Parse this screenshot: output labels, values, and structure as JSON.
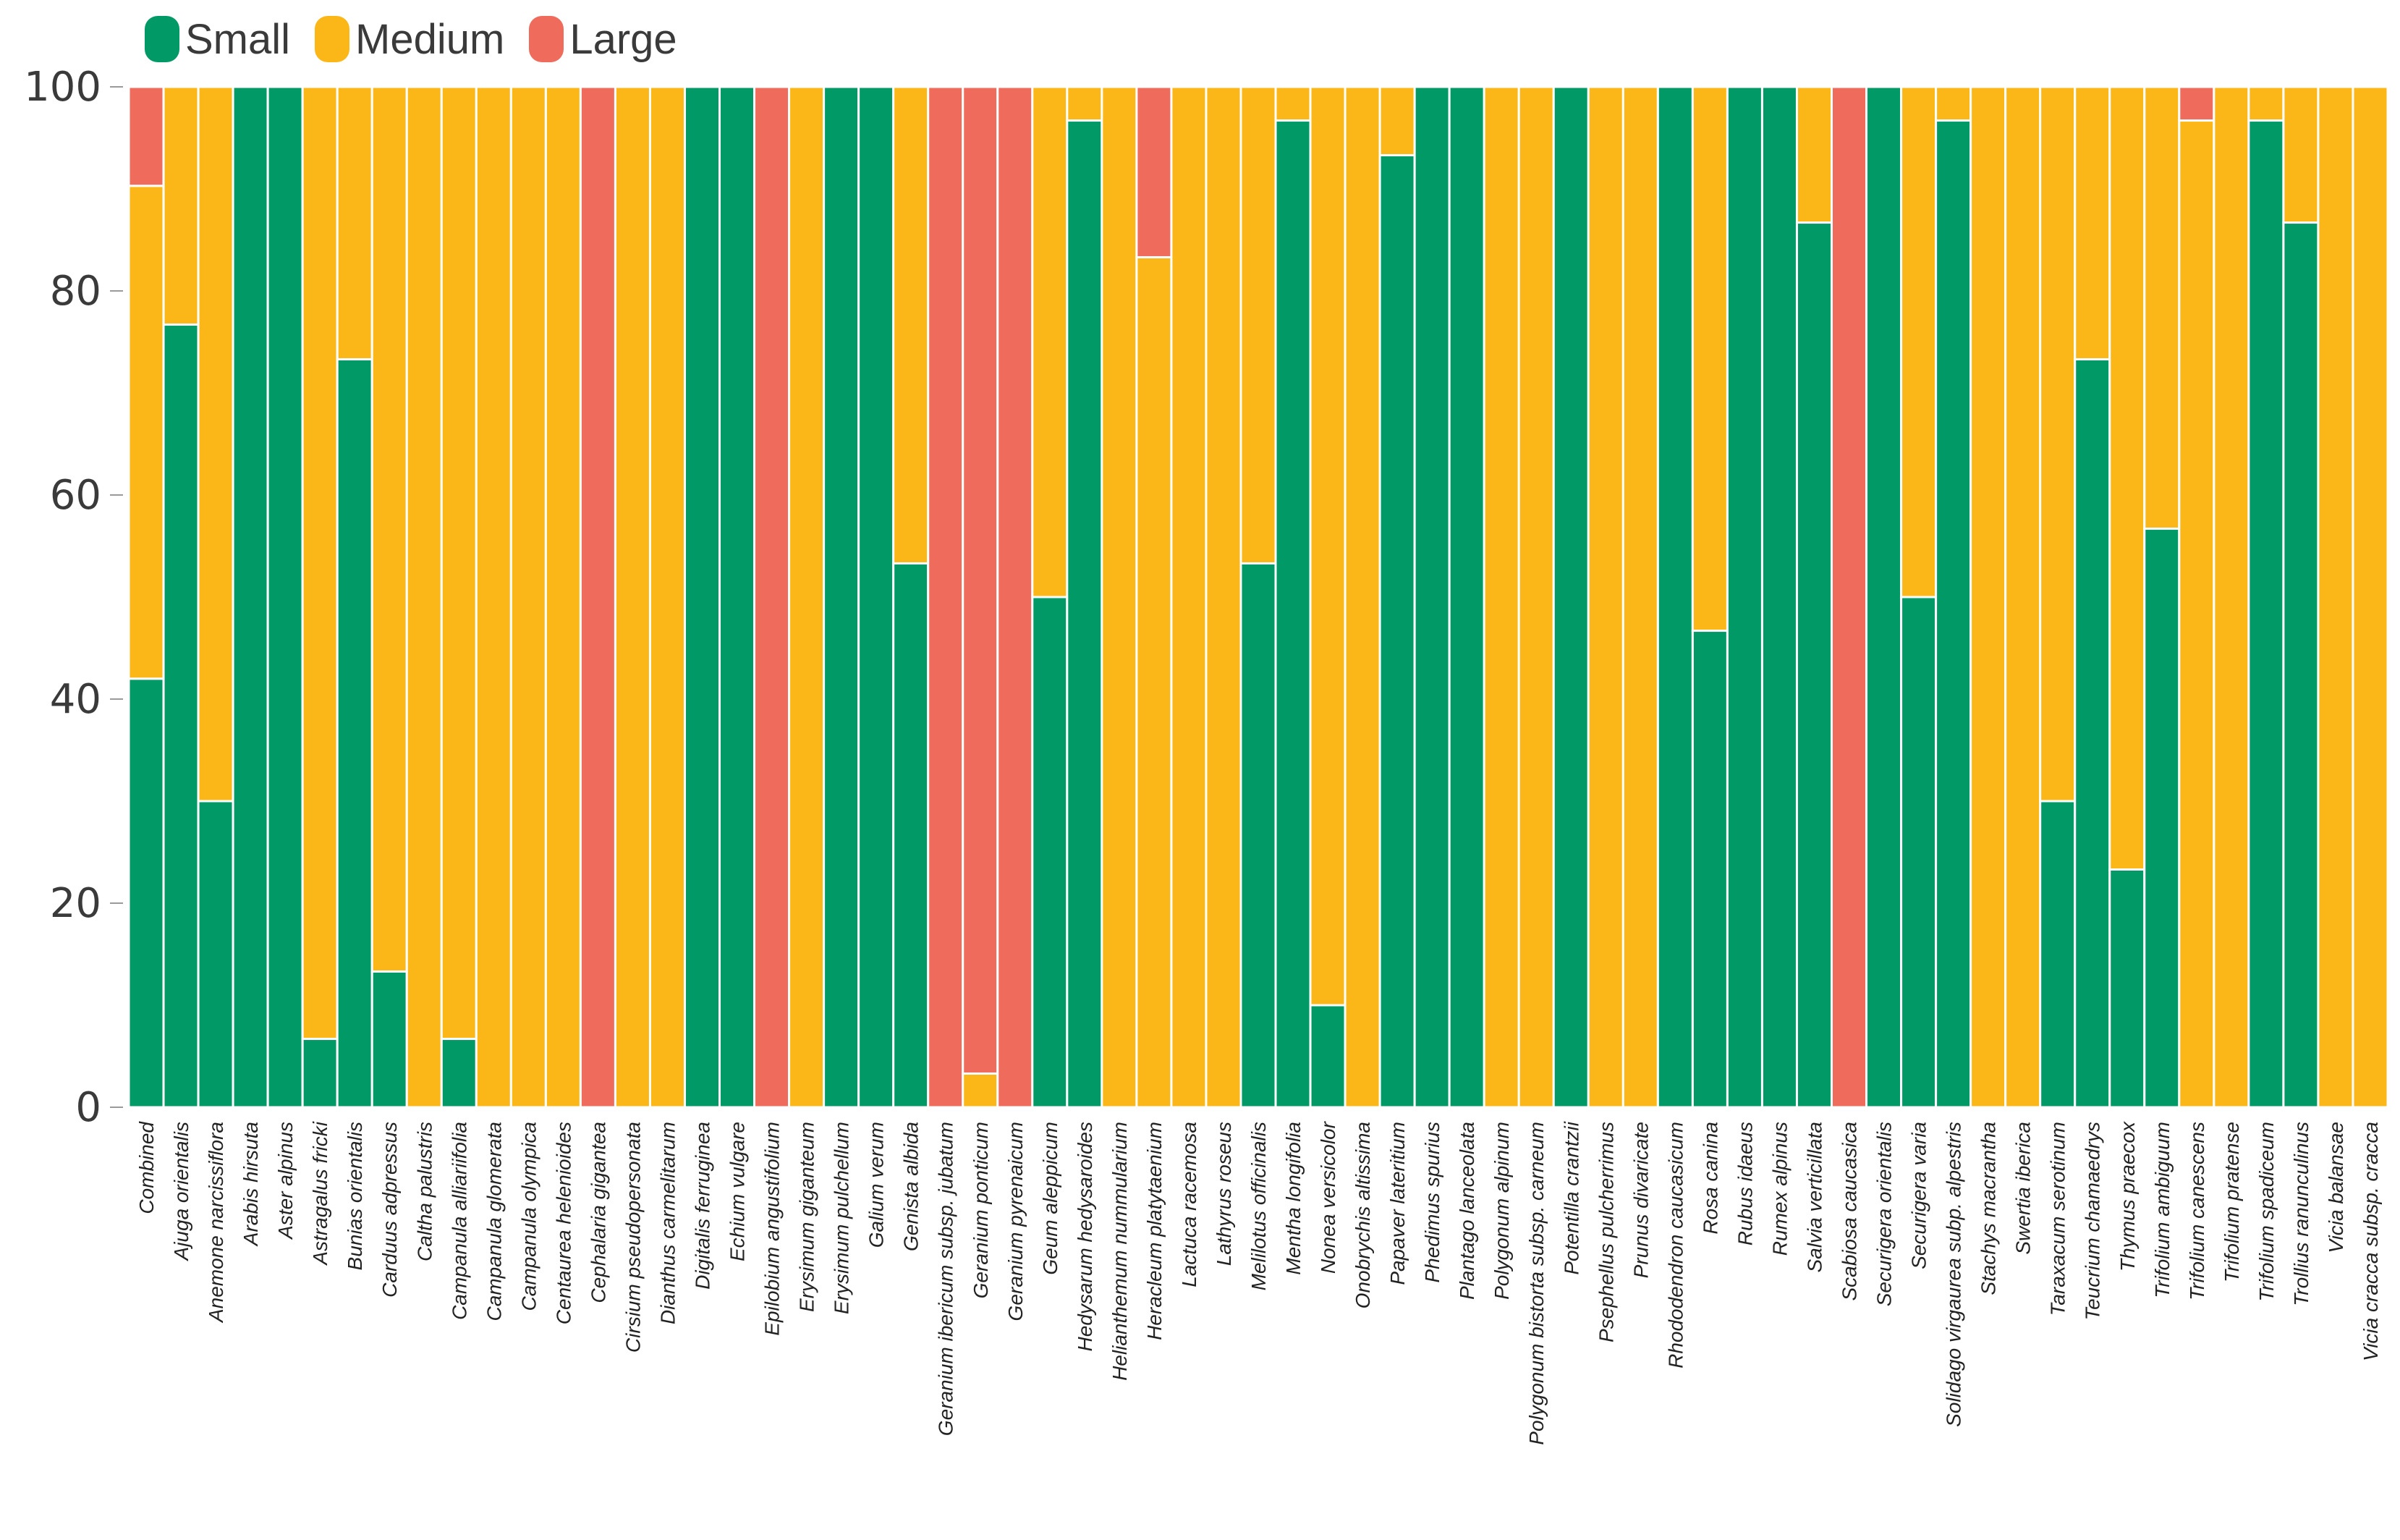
{
  "chart_data": {
    "type": "bar",
    "stacked": true,
    "ylim": [
      0,
      100
    ],
    "yticks": [
      0,
      20,
      40,
      60,
      80,
      100
    ],
    "legend_position": "top-left",
    "series_names": [
      "Small",
      "Medium",
      "Large"
    ],
    "colors": {
      "Small": "#019966",
      "Medium": "#fbb717",
      "Large": "#ef6b5c"
    },
    "categories": [
      "Combined",
      "Ajuga orientalis",
      "Anemone narcissiflora",
      "Arabis hirsuta",
      "Aster alpinus",
      "Astragalus fricki",
      "Bunias orientalis",
      "Carduus adpressus",
      "Caltha palustris",
      "Campanula alliariifolia",
      "Campanula glomerata",
      "Campanula olympica",
      "Centaurea helenioides",
      "Cephalaria gigantea",
      "Cirsium pseudopersonata",
      "Dianthus carmelitarum",
      "Digitalis ferruginea",
      "Echium vulgare",
      "Epilobium angustifolium",
      "Erysimum giganteum",
      "Erysimum pulchellum",
      "Galium verum",
      "Genista albida",
      "Geranium ibericum subsp. jubatum",
      "Geranium ponticum",
      "Geranium pyrenaicum",
      "Geum aleppicum",
      "Hedysarum hedysaroides",
      "Helianthemum nummularium",
      "Heracleum platytaenium",
      "Lactuca racemosa",
      "Lathyrus roseus",
      "Melilotus officinalis",
      "Mentha longifolia",
      "Nonea versicolor",
      "Onobrychis altissima",
      "Papaver lateritium",
      "Phedimus spurius",
      "Plantago lanceolata",
      "Polygonum alpinum",
      "Polygonum bistorta subsp. carneum",
      "Potentilla crantzii",
      "Psephellus pulcherrimus",
      "Prunus divaricate",
      "Rhododendron caucasicum",
      "Rosa canina",
      "Rubus idaeus",
      "Rumex alpinus",
      "Salvia verticillata",
      "Scabiosa caucasica",
      "Securigera orientalis",
      "Securigera varia",
      "Solidago virgaurea subp. alpestris",
      "Stachys macrantha",
      "Swertia iberica",
      "Taraxacum serotinum",
      "Teucrium chamaedrys",
      "Thymus praecox",
      "Trifolium ambiguum",
      "Trifolium canescens",
      "Trifolium pratense",
      "Trifolium spadiceum",
      "Trollius ranunculinus",
      "Vicia balansae",
      "Vicia cracca subsp. cracca"
    ],
    "series": [
      {
        "name": "Small",
        "values": [
          42,
          76.7,
          30,
          100,
          100,
          6.7,
          73.3,
          13.3,
          0,
          6.7,
          0,
          0,
          0,
          0,
          0,
          0,
          100,
          100,
          0,
          0,
          100,
          100,
          53.3,
          0,
          0,
          0,
          50,
          96.7,
          0,
          0,
          0,
          0,
          53.3,
          96.7,
          10,
          0,
          93.3,
          100,
          100,
          0,
          0,
          100,
          0,
          0,
          100,
          46.7,
          100,
          100,
          86.7,
          0,
          100,
          50,
          96.7,
          0,
          0,
          30,
          73.3,
          23.3,
          56.7,
          0,
          0,
          96.7,
          86.7,
          0,
          0
        ]
      },
      {
        "name": "Medium",
        "values": [
          48.3,
          23.3,
          70,
          0,
          0,
          93.3,
          26.7,
          86.7,
          100,
          93.3,
          100,
          100,
          100,
          0,
          100,
          100,
          0,
          0,
          0,
          100,
          0,
          0,
          46.7,
          0,
          3.3,
          0,
          50,
          3.3,
          100,
          83.3,
          100,
          100,
          46.7,
          3.3,
          90,
          100,
          6.7,
          0,
          0,
          100,
          100,
          0,
          100,
          100,
          0,
          53.3,
          0,
          0,
          13.3,
          0,
          0,
          50,
          3.3,
          100,
          100,
          70,
          26.7,
          76.7,
          43.3,
          96.7,
          100,
          3.3,
          13.3,
          100,
          100
        ]
      },
      {
        "name": "Large",
        "values": [
          9.7,
          0,
          0,
          0,
          0,
          0,
          0,
          0,
          0,
          0,
          0,
          0,
          0,
          100,
          0,
          0,
          0,
          0,
          100,
          0,
          0,
          0,
          0,
          100,
          96.7,
          100,
          0,
          0,
          0,
          16.7,
          0,
          0,
          0,
          0,
          0,
          0,
          0,
          0,
          0,
          0,
          0,
          0,
          0,
          0,
          0,
          0,
          0,
          0,
          0,
          100,
          0,
          0,
          0,
          0,
          0,
          0,
          0,
          0,
          0,
          3.3,
          0,
          0,
          0,
          0,
          0
        ]
      }
    ]
  }
}
